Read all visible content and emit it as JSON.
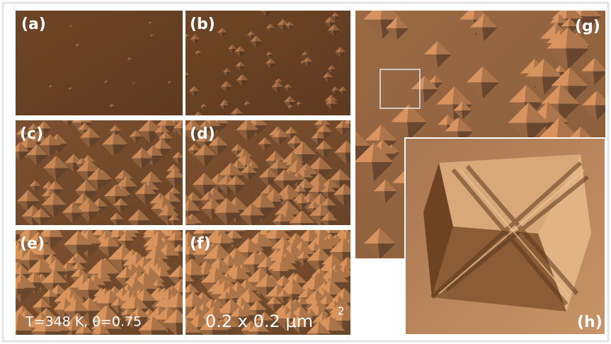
{
  "panels": {
    "a": {
      "label": "(a)"
    },
    "b": {
      "label": "(b)"
    },
    "c": {
      "label": "(c)"
    },
    "d": {
      "label": "(d)"
    },
    "e": {
      "label": "(e)"
    },
    "f": {
      "label": "(f)"
    },
    "g": {
      "label": "(g)"
    },
    "h": {
      "label": "(h)"
    }
  },
  "annotations": {
    "conditions": "T=348 K, θ=0.75",
    "scale": "0.2 x 0.2 μm",
    "scale_exponent": "2"
  }
}
